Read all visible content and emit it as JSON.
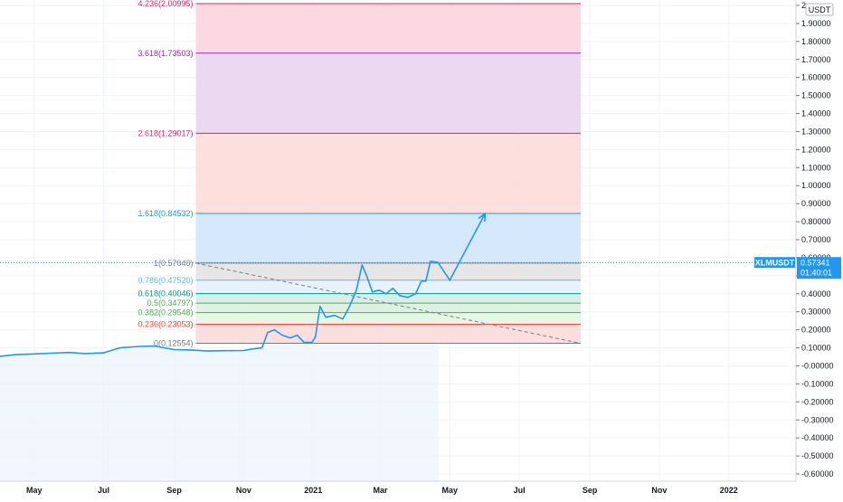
{
  "chart_data": {
    "type": "line",
    "symbol": "XLMUSDT",
    "currency": "USDT",
    "last_price": "0.57341",
    "countdown": "01:40:01",
    "colors": {
      "price_line": "#2196f3",
      "price_area": "#e3f2fd",
      "axis_badge": "#2196f3",
      "grid": "#f0f3fa"
    },
    "y_axis": {
      "range": [
        -0.64,
        2.03
      ],
      "ticks": [
        -0.6,
        -0.5,
        -0.4,
        -0.3,
        -0.2,
        -0.1,
        0.0,
        0.1,
        0.2,
        0.3,
        0.4,
        0.5,
        0.6,
        0.7,
        0.8,
        0.9,
        1.0,
        1.1,
        1.2,
        1.3,
        1.4,
        1.5,
        1.6,
        1.7,
        1.8,
        1.9,
        2.0
      ],
      "tick_labels": [
        "-0.60000",
        "-0.50000",
        "-0.40000",
        "-0.30000",
        "-0.20000",
        "-0.10000",
        "-0.00000",
        "0.10000",
        "0.20000",
        "0.30000",
        "0.40000",
        "0.50000",
        "0.60000",
        "0.70000",
        "0.80000",
        "0.90000",
        "1.00000",
        "1.10000",
        "1.20000",
        "1.30000",
        "1.40000",
        "1.50000",
        "1.60000",
        "1.70000",
        "1.80000",
        "1.90000",
        "2"
      ]
    },
    "x_axis": {
      "range": [
        "2020-04-01",
        "2022-03-01"
      ],
      "ticks": [
        {
          "date": "2020-05-01",
          "label": "May"
        },
        {
          "date": "2020-07-01",
          "label": "Jul"
        },
        {
          "date": "2020-09-01",
          "label": "Sep"
        },
        {
          "date": "2020-11-01",
          "label": "Nov"
        },
        {
          "date": "2021-01-01",
          "label": "2021"
        },
        {
          "date": "2021-03-01",
          "label": "Mar"
        },
        {
          "date": "2021-05-01",
          "label": "May"
        },
        {
          "date": "2021-07-01",
          "label": "Jul"
        },
        {
          "date": "2021-09-01",
          "label": "Sep"
        },
        {
          "date": "2021-11-01",
          "label": "Nov"
        },
        {
          "date": "2022-01-01",
          "label": "2022"
        }
      ]
    },
    "fib_box": {
      "start": "2020-09-20",
      "end": "2021-08-24"
    },
    "fib_levels": [
      {
        "label": "4.236(2.00995)",
        "value": 2.00995,
        "color": "#e91e63",
        "fill": "#fcd5df"
      },
      {
        "label": "3.618(1.73503)",
        "value": 1.73503,
        "color": "#9c27b0",
        "fill": "#ead5f0"
      },
      {
        "label": "2.618(1.29017)",
        "value": 1.29017,
        "color": "#e91e63",
        "fill": "#fddcda"
      },
      {
        "label": "1.618(0.84532)",
        "value": 0.84532,
        "color": "#2196f3",
        "fill": "#d1e6fb"
      },
      {
        "label": "1(0.57040)",
        "value": 0.5704,
        "color": "#787b86",
        "fill": "#e3e3e3"
      },
      {
        "label": "0.786(0.47520)",
        "value": 0.4752,
        "color": "#64b5f6",
        "fill": "#e4f1fd"
      },
      {
        "label": "0.618(0.40046)",
        "value": 0.40046,
        "color": "#009688",
        "fill": "#d4ece9"
      },
      {
        "label": "0.5(0.34797)",
        "value": 0.34797,
        "color": "#4caf50",
        "fill": "#dcf0dd"
      },
      {
        "label": "0.382(0.29548)",
        "value": 0.29548,
        "color": "#4caf50",
        "fill": "#e6f4e6"
      },
      {
        "label": "0.236(0.23053)",
        "value": 0.23053,
        "color": "#f44336",
        "fill": "#fbdcdc"
      },
      {
        "label": "0(0.12554)",
        "value": 0.12554,
        "color": "#787b86",
        "fill": null
      }
    ],
    "trend_line": {
      "from": {
        "date": "2020-09-20",
        "value": 0.57
      },
      "to": {
        "date": "2021-08-24",
        "value": 0.125
      }
    },
    "projection_arrow": [
      {
        "date": "2021-04-21",
        "value": 0.57
      },
      {
        "date": "2021-05-01",
        "value": 0.475
      },
      {
        "date": "2021-06-01",
        "value": 0.845
      }
    ],
    "series": [
      {
        "points": [
          [
            "2020-04-01",
            0.053
          ],
          [
            "2020-04-15",
            0.062
          ],
          [
            "2020-05-01",
            0.066
          ],
          [
            "2020-05-15",
            0.07
          ],
          [
            "2020-06-01",
            0.074
          ],
          [
            "2020-06-15",
            0.068
          ],
          [
            "2020-07-01",
            0.072
          ],
          [
            "2020-07-15",
            0.1
          ],
          [
            "2020-08-01",
            0.108
          ],
          [
            "2020-08-15",
            0.11
          ],
          [
            "2020-09-01",
            0.09
          ],
          [
            "2020-09-15",
            0.088
          ],
          [
            "2020-10-01",
            0.082
          ],
          [
            "2020-10-15",
            0.084
          ],
          [
            "2020-11-01",
            0.085
          ],
          [
            "2020-11-10",
            0.095
          ],
          [
            "2020-11-17",
            0.1
          ],
          [
            "2020-11-22",
            0.185
          ],
          [
            "2020-11-28",
            0.2
          ],
          [
            "2020-12-05",
            0.17
          ],
          [
            "2020-12-12",
            0.155
          ],
          [
            "2020-12-18",
            0.17
          ],
          [
            "2020-12-24",
            0.13
          ],
          [
            "2020-12-31",
            0.13
          ],
          [
            "2021-01-03",
            0.16
          ],
          [
            "2021-01-07",
            0.33
          ],
          [
            "2021-01-12",
            0.27
          ],
          [
            "2021-01-20",
            0.28
          ],
          [
            "2021-01-27",
            0.26
          ],
          [
            "2021-02-02",
            0.33
          ],
          [
            "2021-02-08",
            0.42
          ],
          [
            "2021-02-13",
            0.56
          ],
          [
            "2021-02-17",
            0.5
          ],
          [
            "2021-02-22",
            0.41
          ],
          [
            "2021-02-28",
            0.42
          ],
          [
            "2021-03-06",
            0.4
          ],
          [
            "2021-03-12",
            0.43
          ],
          [
            "2021-03-18",
            0.39
          ],
          [
            "2021-03-25",
            0.38
          ],
          [
            "2021-04-01",
            0.4
          ],
          [
            "2021-04-06",
            0.47
          ],
          [
            "2021-04-10",
            0.47
          ],
          [
            "2021-04-14",
            0.58
          ],
          [
            "2021-04-21",
            0.57341
          ]
        ]
      }
    ]
  }
}
